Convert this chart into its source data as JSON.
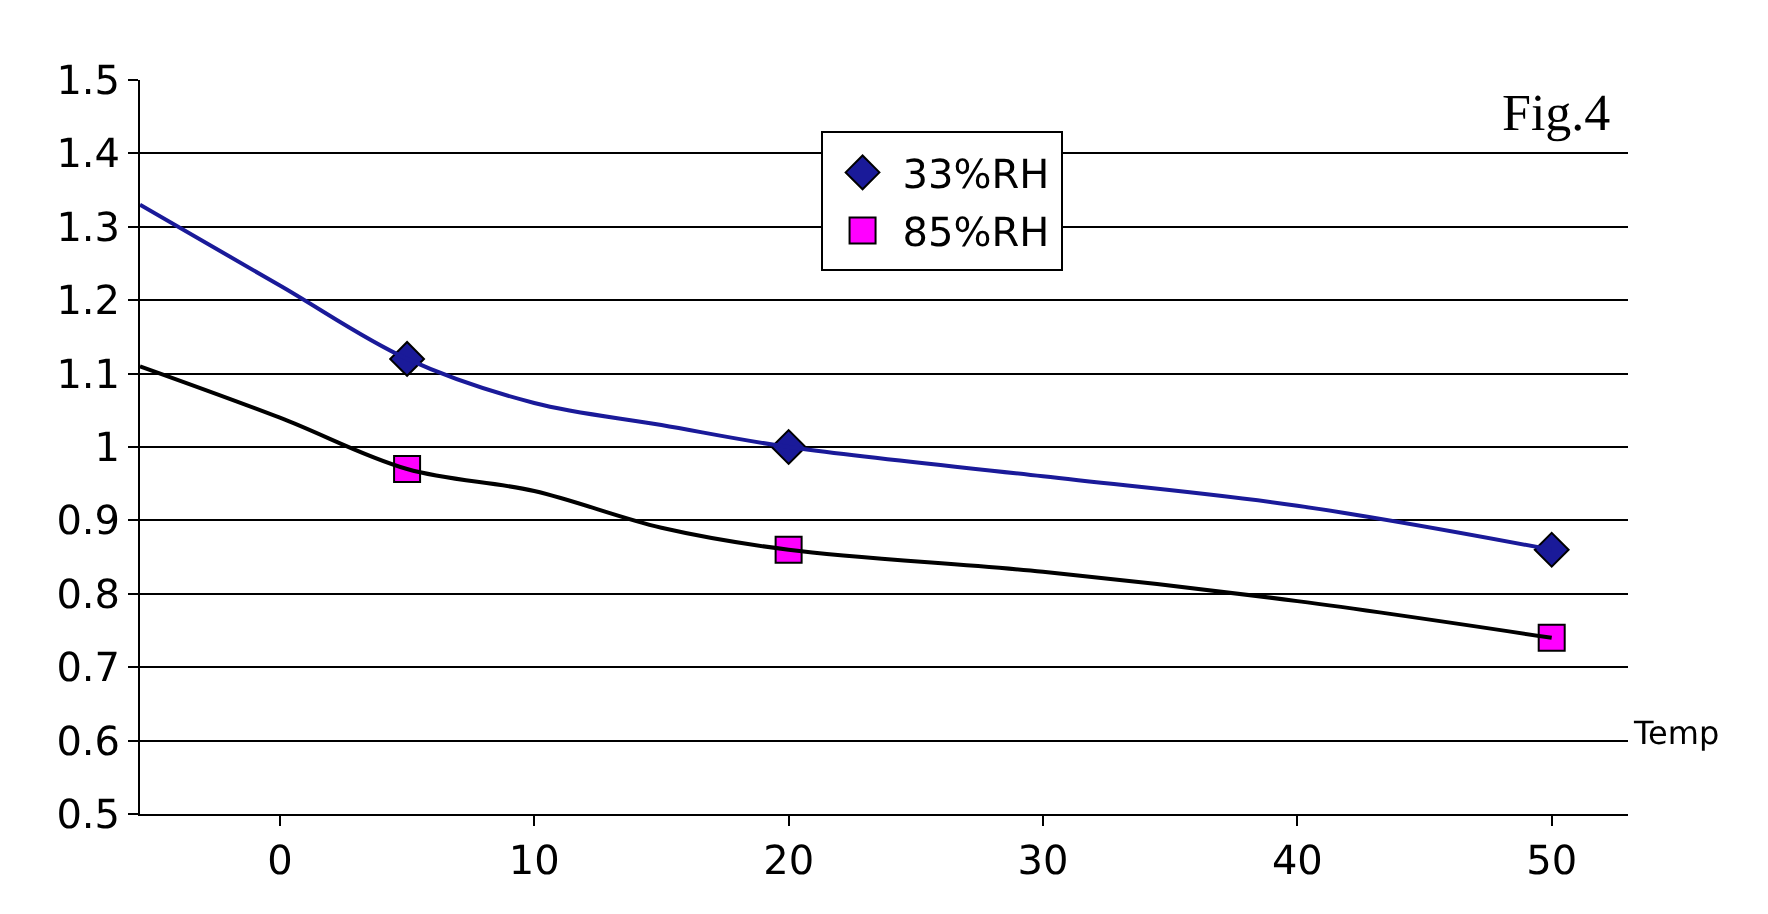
{
  "chart_data": {
    "type": "line",
    "xlabel": "Temp",
    "annotations": [
      "Fig.4"
    ],
    "xlim": [
      -5.5,
      53
    ],
    "xticks": [
      0,
      10,
      20,
      30,
      40,
      50
    ],
    "ylim": [
      0.5,
      1.5
    ],
    "yticks": [
      0.5,
      0.6,
      0.7,
      0.8,
      0.9,
      1,
      1.1,
      1.2,
      1.3,
      1.4,
      1.5
    ],
    "grid": "y",
    "legend": "top right",
    "line_style": "solid",
    "series": [
      {
        "color": "#1a1a99",
        "x": [
          -5.5,
          0,
          5,
          10,
          15,
          20,
          30,
          40,
          50
        ],
        "values": [
          1.33,
          1.22,
          1.12,
          1.06,
          1.03,
          1.0,
          0.96,
          0.92,
          0.86
        ]
      },
      {
        "type": "scatter",
        "name": "33%RH",
        "color": "#1a1a99",
        "marker": "diamond",
        "x": [
          5,
          20,
          50
        ],
        "values": [
          1.12,
          1.0,
          0.86
        ]
      },
      {
        "color": "#000000",
        "x": [
          -5.5,
          0,
          5,
          10,
          15,
          20,
          30,
          40,
          50
        ],
        "values": [
          1.11,
          1.04,
          0.97,
          0.94,
          0.89,
          0.86,
          0.83,
          0.79,
          0.74
        ]
      },
      {
        "type": "scatter",
        "name": "85%RH",
        "color": "#ff00ff",
        "marker": "square",
        "x": [
          5,
          20,
          50
        ],
        "values": [
          0.97,
          0.86,
          0.74
        ]
      }
    ]
  }
}
